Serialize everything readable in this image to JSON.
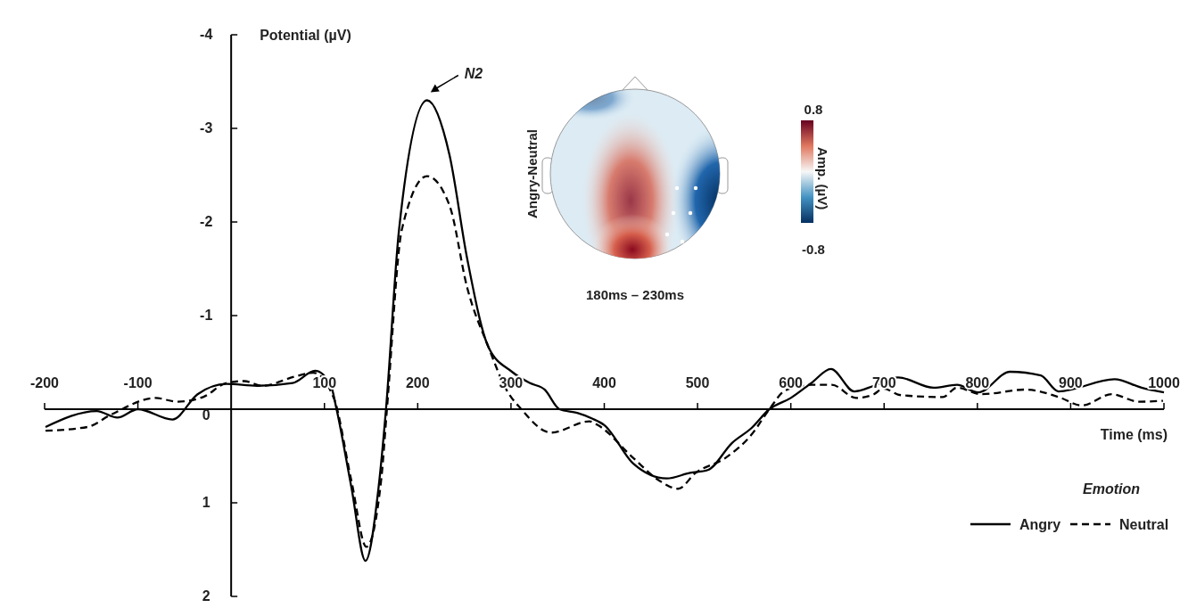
{
  "chart_data": {
    "type": "line",
    "xlabel": "Time (ms)",
    "ylabel": "Potential (µV)",
    "legend_title": "Emotion",
    "legend": "bottom right",
    "grid": false,
    "xlim": [
      -200,
      1000
    ],
    "xticks": [
      -200,
      -100,
      100,
      200,
      300,
      400,
      500,
      600,
      700,
      800,
      900,
      1000
    ],
    "ylim": [
      2,
      -4
    ],
    "yticks": [
      -4,
      -3,
      -2,
      -1,
      0,
      1,
      2
    ],
    "series": [
      {
        "name": "Angry",
        "color": "#000000",
        "line_style": "solid",
        "x": [
          -199,
          -144,
          -122,
          -100,
          -63,
          -36,
          -5,
          28,
          66,
          90,
          107,
          113,
          129,
          144,
          158,
          166,
          180,
          210,
          234,
          253,
          276,
          301,
          320,
          336,
          352,
          371,
          387,
          400,
          431,
          467,
          492,
          511,
          537,
          558,
          577,
          600,
          622,
          643,
          668,
          689,
          715,
          753,
          778,
          801,
          835,
          868,
          887,
          947,
          976,
          1000
        ],
        "values": [
          0.19,
          0.02,
          0.09,
          0,
          0.11,
          -0.16,
          -0.27,
          -0.25,
          -0.28,
          -0.41,
          -0.25,
          0,
          0.84,
          1.62,
          0.84,
          0,
          -1.92,
          -3.3,
          -2.72,
          -1.61,
          -0.66,
          -0.4,
          -0.28,
          -0.21,
          0,
          0.04,
          0.1,
          0.17,
          0.58,
          0.74,
          0.68,
          0.65,
          0.36,
          0.2,
          0,
          -0.12,
          -0.28,
          -0.43,
          -0.19,
          -0.25,
          -0.34,
          -0.23,
          -0.26,
          -0.18,
          -0.4,
          -0.36,
          -0.19,
          -0.32,
          -0.23,
          -0.18
        ]
      },
      {
        "name": "Neutral",
        "color": "#000000",
        "line_style": "dashed",
        "x": [
          -199,
          -154,
          -129,
          -81,
          -58,
          -30,
          -5,
          14,
          33,
          69,
          88,
          110,
          129,
          145,
          161,
          167,
          183,
          210,
          234,
          253,
          276,
          295,
          311,
          343,
          384,
          393,
          431,
          460,
          479,
          498,
          530,
          558,
          577,
          594,
          622,
          644,
          670,
          689,
          699,
          718,
          763,
          778,
          804,
          852,
          887,
          912,
          944,
          973,
          999
        ],
        "values": [
          0.23,
          0.19,
          0.06,
          -0.12,
          -0.08,
          -0.13,
          -0.28,
          -0.3,
          -0.25,
          -0.35,
          -0.39,
          -0.12,
          0.77,
          1.47,
          0.74,
          0,
          -1.92,
          -2.49,
          -2.18,
          -1.3,
          -0.66,
          -0.21,
          0,
          0.25,
          0.13,
          0.17,
          0.52,
          0.77,
          0.85,
          0.68,
          0.52,
          0.27,
          0,
          -0.2,
          -0.26,
          -0.26,
          -0.12,
          -0.16,
          -0.22,
          -0.15,
          -0.13,
          -0.23,
          -0.16,
          -0.21,
          -0.13,
          -0.04,
          -0.16,
          -0.08,
          -0.09
        ]
      }
    ],
    "annotations": [
      {
        "text": "N2",
        "x": 210,
        "y": -3.3
      },
      "Angry-Neutral",
      "0.8",
      "Amp. (µV)",
      "-0.8",
      "180ms – 230ms"
    ]
  }
}
